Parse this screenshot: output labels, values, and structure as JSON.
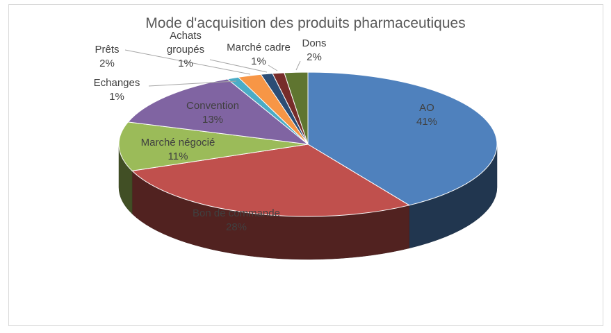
{
  "chart_data": {
    "type": "pie",
    "title": "Mode d'acquisition  des produits  pharmaceutiques",
    "slices": [
      {
        "name": "AO",
        "value": 41,
        "label": "41%",
        "color": "#4f81bd"
      },
      {
        "name": "Bon de commande",
        "value": 28,
        "label": "28%",
        "color": "#c0504d"
      },
      {
        "name": "Marché négocié",
        "value": 11,
        "label": "11%",
        "color": "#9bbb59"
      },
      {
        "name": "Convention",
        "value": 13,
        "label": "13%",
        "color": "#8064a2"
      },
      {
        "name": "Echanges",
        "value": 1,
        "label": "1%",
        "color": "#4bacc6"
      },
      {
        "name": "Prêts",
        "value": 2,
        "label": "2%",
        "color": "#f79646"
      },
      {
        "name": "Achats groupés",
        "value": 1,
        "label": "1%",
        "color": "#2c4d75"
      },
      {
        "name": "Marché cadre",
        "value": 1,
        "label": "1%",
        "color": "#772c2a"
      },
      {
        "name": "Dons",
        "value": 2,
        "label": "2%",
        "color": "#5f7530"
      }
    ],
    "three_d": true,
    "legend": "none"
  }
}
